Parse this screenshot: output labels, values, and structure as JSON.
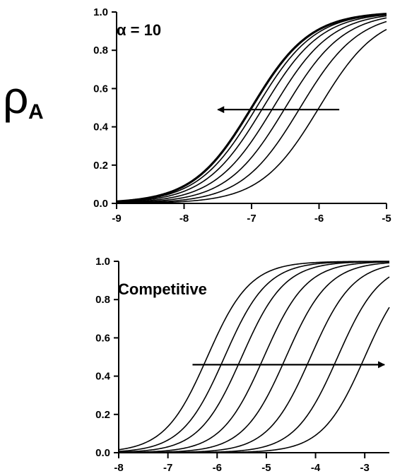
{
  "figure": {
    "ylabel_main": "ρ",
    "ylabel_sub": "A"
  },
  "chart_data": [
    {
      "type": "line",
      "title": "",
      "annotation": "α = 10",
      "xlabel": "",
      "ylabel": "ρA",
      "xlim": [
        -9,
        -5
      ],
      "ylim": [
        0,
        1
      ],
      "xticks": [
        -9,
        -8,
        -7,
        -6,
        -5
      ],
      "yticks": [
        0.0,
        0.2,
        0.4,
        0.6,
        0.8,
        1.0
      ],
      "x_tick_labels": [
        "-9",
        "-8",
        "-7",
        "-6",
        "-5"
      ],
      "y_tick_labels": [
        "0.0",
        "0.2",
        "0.4",
        "0.6",
        "0.8",
        "1.0"
      ],
      "curve_model": "logistic",
      "slope": 1,
      "midpoints": [
        -7.0,
        -6.93,
        -6.83,
        -6.68,
        -6.5,
        -6.28,
        -6.0
      ],
      "highlight_curve_index": 0,
      "arrow": {
        "direction": "left",
        "from": [
          -5.7,
          0.49
        ],
        "to": [
          -7.5,
          0.49
        ]
      }
    },
    {
      "type": "line",
      "title": "",
      "annotation": "Competitive",
      "xlabel": "",
      "ylabel": "ρA",
      "xlim": [
        -8,
        -2.5
      ],
      "ylim": [
        0,
        1
      ],
      "xticks": [
        -8,
        -7,
        -6,
        -5,
        -4,
        -3
      ],
      "yticks": [
        0.0,
        0.2,
        0.4,
        0.6,
        0.8,
        1.0
      ],
      "x_tick_labels": [
        "-8",
        "-7",
        "-6",
        "-5",
        "-4",
        "-3"
      ],
      "y_tick_labels": [
        "0.0",
        "0.2",
        "0.4",
        "0.6",
        "0.8",
        "1.0"
      ],
      "curve_model": "logistic",
      "slope": 1,
      "midpoints": [
        -6.2,
        -5.85,
        -5.5,
        -5.05,
        -4.6,
        -4.1,
        -3.55,
        -3.0
      ],
      "highlight_curve_index": null,
      "arrow": {
        "direction": "right",
        "from": [
          -6.5,
          0.46
        ],
        "to": [
          -2.6,
          0.46
        ]
      }
    }
  ]
}
